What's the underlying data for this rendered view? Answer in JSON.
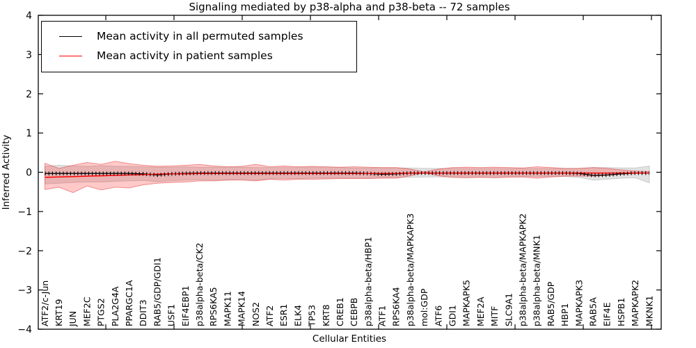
{
  "legend": {
    "items": [
      {
        "label": "Mean activity in all permuted samples",
        "color": "#000000"
      },
      {
        "label": "Mean activity in patient samples",
        "color": "#ff0000"
      }
    ]
  },
  "chart_data": {
    "type": "line",
    "title": "Signaling mediated by p38-alpha and p38-beta -- 72 samples",
    "xlabel": "Cellular Entities",
    "ylabel": "Inferred Activity",
    "ylim": [
      -4,
      4
    ],
    "yticks": [
      4,
      3,
      2,
      1,
      0,
      -1,
      -2,
      -3,
      -4
    ],
    "grid": false,
    "legend_position": "upper left",
    "x_tick_label_rotation": 90,
    "categories": [
      "ATF2/c-Jun",
      "KRT19",
      "JUN",
      "MEF2C",
      "PTGS2",
      "PLA2G4A",
      "PPARGC1A",
      "DDIT3",
      "RAB5/GDP/GDI1",
      "USF1",
      "EIF4EBP1",
      "p38alpha-beta/CK2",
      "RPS6KA5",
      "MAPK11",
      "MAPK14",
      "NOS2",
      "ATF2",
      "ESR1",
      "ELK4",
      "TP53",
      "KRT8",
      "CREB1",
      "CEBPB",
      "p38alpha-beta/HBP1",
      "ATF1",
      "RPS6KA4",
      "p38alpha-beta/MAPKAPK3",
      "mol:GDP",
      "ATF6",
      "GDI1",
      "MAPKAPK5",
      "MEF2A",
      "MITF",
      "SLC9A1",
      "p38alpha-beta/MAPKAPK2",
      "p38alpha-beta/MNK1",
      "RAB5/GDP",
      "HBP1",
      "MAPKAPK3",
      "RAB5A",
      "EIF4E",
      "HSPB1",
      "MAPKAPK2",
      "MKNK1"
    ],
    "series": [
      {
        "name": "Mean activity in all permuted samples",
        "color": "#000000",
        "values": [
          -0.03,
          -0.03,
          -0.03,
          -0.03,
          -0.03,
          -0.03,
          -0.03,
          -0.04,
          -0.07,
          -0.04,
          -0.03,
          -0.02,
          -0.02,
          -0.02,
          -0.02,
          -0.02,
          -0.02,
          -0.02,
          -0.02,
          -0.02,
          -0.02,
          -0.02,
          -0.02,
          -0.03,
          -0.05,
          -0.04,
          -0.02,
          -0.02,
          -0.02,
          -0.02,
          -0.02,
          -0.02,
          -0.02,
          -0.02,
          -0.02,
          -0.02,
          -0.02,
          -0.02,
          -0.03,
          -0.08,
          -0.07,
          -0.04,
          -0.02,
          -0.02
        ]
      },
      {
        "name": "Mean activity in patient samples",
        "color": "#ff0000",
        "values": [
          -0.13,
          -0.12,
          -0.11,
          -0.1,
          -0.09,
          -0.08,
          -0.07,
          -0.06,
          -0.05,
          -0.04,
          -0.04,
          -0.03,
          -0.03,
          -0.03,
          -0.03,
          -0.03,
          -0.03,
          -0.03,
          -0.03,
          -0.03,
          -0.03,
          -0.03,
          -0.03,
          -0.03,
          -0.03,
          -0.03,
          -0.02,
          -0.02,
          -0.02,
          -0.02,
          -0.02,
          -0.02,
          -0.02,
          -0.02,
          -0.02,
          -0.02,
          -0.02,
          -0.02,
          -0.02,
          -0.02,
          -0.02,
          -0.02,
          -0.02,
          -0.02
        ]
      }
    ],
    "bands": [
      {
        "name": "permuted samples +/- std",
        "fill": "rgba(150,150,150,0.28)",
        "edge": "rgba(140,140,140,0.4)",
        "upper": [
          0.15,
          0.18,
          0.16,
          0.15,
          0.17,
          0.15,
          0.15,
          0.14,
          0.13,
          0.13,
          0.14,
          0.13,
          0.13,
          0.13,
          0.13,
          0.12,
          0.12,
          0.12,
          0.12,
          0.12,
          0.12,
          0.12,
          0.11,
          0.11,
          0.11,
          0.11,
          0.11,
          0.1,
          0.1,
          0.1,
          0.1,
          0.1,
          0.1,
          0.1,
          0.1,
          0.1,
          0.1,
          0.1,
          0.1,
          0.12,
          0.12,
          0.11,
          0.11,
          0.16
        ],
        "lower": [
          -0.3,
          -0.28,
          -0.26,
          -0.25,
          -0.25,
          -0.23,
          -0.22,
          -0.21,
          -0.24,
          -0.22,
          -0.2,
          -0.19,
          -0.2,
          -0.19,
          -0.18,
          -0.2,
          -0.17,
          -0.16,
          -0.16,
          -0.15,
          -0.15,
          -0.14,
          -0.14,
          -0.14,
          -0.13,
          -0.13,
          -0.13,
          -0.12,
          -0.12,
          -0.12,
          -0.12,
          -0.12,
          -0.12,
          -0.11,
          -0.11,
          -0.11,
          -0.11,
          -0.11,
          -0.13,
          -0.2,
          -0.18,
          -0.15,
          -0.14,
          -0.27
        ]
      },
      {
        "name": "patient samples +/- std",
        "fill": "rgba(255,40,40,0.25)",
        "edge": "rgba(225,50,50,0.55)",
        "upper": [
          0.23,
          0.1,
          0.18,
          0.25,
          0.2,
          0.28,
          0.22,
          0.18,
          0.15,
          0.16,
          0.18,
          0.2,
          0.16,
          0.14,
          0.15,
          0.2,
          0.14,
          0.16,
          0.14,
          0.15,
          0.14,
          0.13,
          0.14,
          0.13,
          0.12,
          0.12,
          0.08,
          0.01,
          0.08,
          0.12,
          0.13,
          0.12,
          0.13,
          0.12,
          0.11,
          0.14,
          0.12,
          0.1,
          0.1,
          0.12,
          0.1,
          0.06,
          0.03,
          0.02
        ],
        "lower": [
          -0.44,
          -0.38,
          -0.52,
          -0.35,
          -0.45,
          -0.38,
          -0.4,
          -0.32,
          -0.28,
          -0.26,
          -0.25,
          -0.22,
          -0.22,
          -0.2,
          -0.2,
          -0.22,
          -0.18,
          -0.2,
          -0.18,
          -0.18,
          -0.17,
          -0.16,
          -0.16,
          -0.16,
          -0.15,
          -0.15,
          -0.09,
          -0.01,
          -0.09,
          -0.13,
          -0.14,
          -0.13,
          -0.14,
          -0.13,
          -0.12,
          -0.15,
          -0.12,
          -0.1,
          -0.1,
          -0.1,
          -0.08,
          -0.05,
          -0.03,
          -0.02
        ]
      }
    ]
  }
}
